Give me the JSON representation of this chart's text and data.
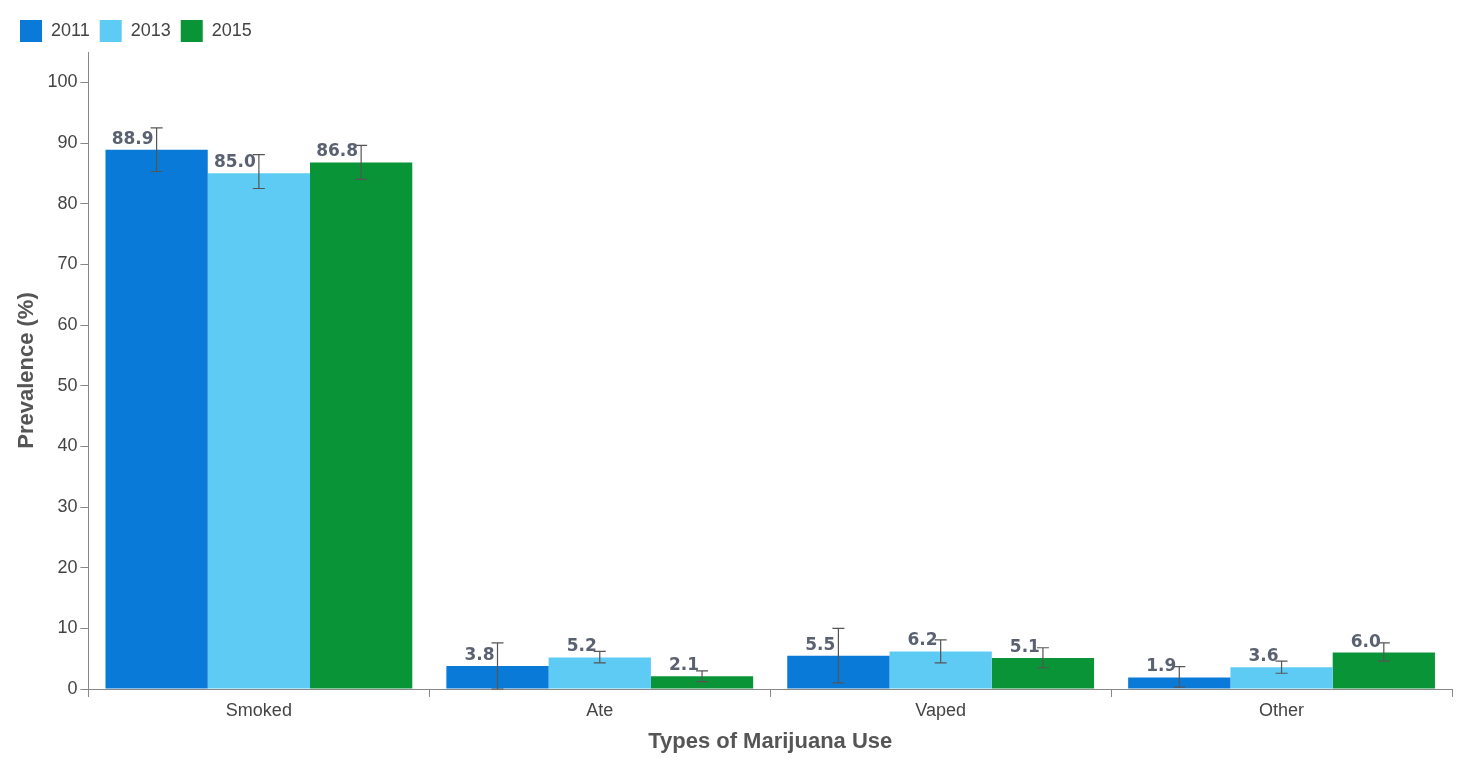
{
  "chart_data": {
    "type": "bar",
    "xlabel": "Types of Marijuana Use",
    "ylabel": "Prevalence (%)",
    "categories": [
      "Smoked",
      "Ate",
      "Vaped",
      "Other"
    ],
    "series": [
      {
        "name": "2011",
        "color": "#0a7ad8",
        "values": [
          88.9,
          3.8,
          5.5,
          1.9
        ],
        "value_labels": [
          "88.9",
          "3.8",
          "5.5",
          "1.9"
        ],
        "errors": [
          [
            85.3,
            92.5
          ],
          [
            0,
            7.6
          ],
          [
            1,
            10
          ],
          [
            0.3,
            3.7
          ]
        ]
      },
      {
        "name": "2013",
        "color": "#5ecbf5",
        "values": [
          85.0,
          5.2,
          6.2,
          3.6
        ],
        "value_labels": [
          "85.0",
          "5.2",
          "6.2",
          "3.6"
        ],
        "errors": [
          [
            82.5,
            88.1
          ],
          [
            4.3,
            6.2
          ],
          [
            4.3,
            8.1
          ],
          [
            2.6,
            4.6
          ]
        ]
      },
      {
        "name": "2015",
        "color": "#0a9438",
        "values": [
          86.8,
          2.1,
          5.1,
          6.0
        ],
        "value_labels": [
          "86.8",
          "2.1",
          "5.1",
          "6.0"
        ],
        "errors": [
          [
            84,
            89.6
          ],
          [
            1.2,
            3.0
          ],
          [
            3.5,
            6.8
          ],
          [
            4.6,
            7.6
          ]
        ]
      }
    ],
    "ylim": [
      0,
      105
    ],
    "yticks": [
      0,
      10,
      20,
      30,
      40,
      50,
      60,
      70,
      80,
      90,
      100
    ],
    "grid": false,
    "legend": "top left"
  }
}
